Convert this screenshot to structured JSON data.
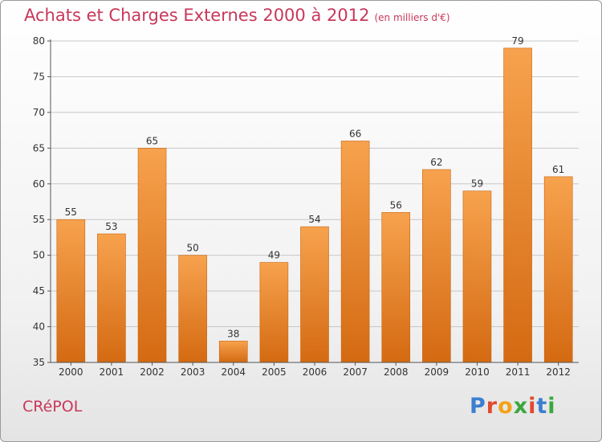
{
  "header": {
    "title": "Achats et Charges Externes 2000 à 2012",
    "subtitle": "(en milliers d'€)"
  },
  "footer": {
    "place": "CRéPOL",
    "brand_letters": [
      "P",
      "r",
      "o",
      "x",
      "i",
      "t",
      "i"
    ]
  },
  "colors": {
    "title": "#c8385a",
    "bar_top": "#f7a24e",
    "bar_bottom": "#d46a12",
    "grid": "#c8c8c8",
    "brand": [
      "#3b7fd0",
      "#e04a2f",
      "#f2a316",
      "#39a83b",
      "#e04a2f",
      "#3b7fd0",
      "#39a83b"
    ]
  },
  "chart_data": {
    "type": "bar",
    "title": "Achats et Charges Externes 2000 à 2012",
    "subtitle": "(en milliers d'€)",
    "categories": [
      "2000",
      "2001",
      "2002",
      "2003",
      "2004",
      "2005",
      "2006",
      "2007",
      "2008",
      "2009",
      "2010",
      "2011",
      "2012"
    ],
    "values": [
      55,
      53,
      65,
      50,
      38,
      49,
      54,
      66,
      56,
      62,
      59,
      79,
      61
    ],
    "ylim": [
      35,
      80
    ],
    "yticks": [
      35,
      40,
      45,
      50,
      55,
      60,
      65,
      70,
      75,
      80
    ],
    "grid": true,
    "xlabel": "",
    "ylabel": ""
  }
}
